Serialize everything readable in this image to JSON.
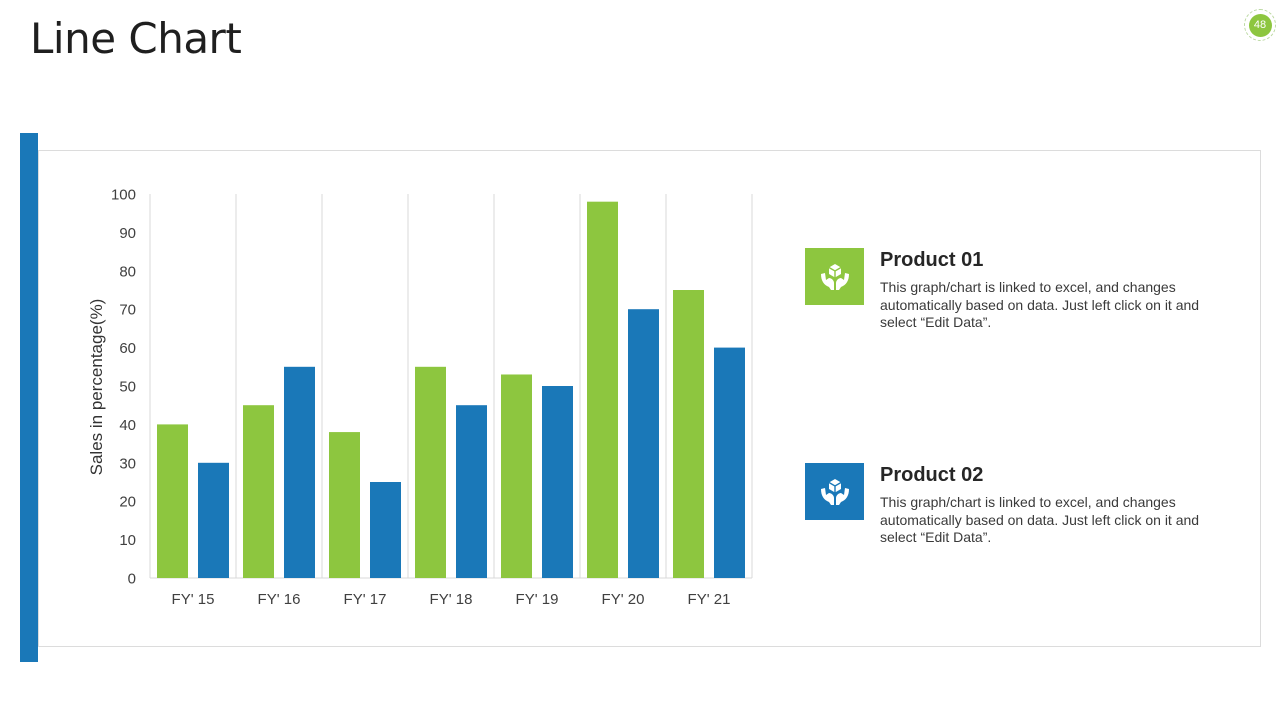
{
  "title": "Line Chart",
  "page_number": "48",
  "colors": {
    "accent": "#1a78b8",
    "green": "#8dc63f",
    "blue": "#1a78b8"
  },
  "legend": [
    {
      "title": "Product 01",
      "description": "This graph/chart is linked to excel, and changes automatically based on data. Just left click on it and select “Edit Data”.",
      "color": "#8dc63f",
      "icon": "hands-box-icon"
    },
    {
      "title": "Product 02",
      "description": "This graph/chart is linked to excel, and changes automatically based on data. Just left click on it and select “Edit Data”.",
      "color": "#1a78b8",
      "icon": "hands-box-icon"
    }
  ],
  "chart_data": {
    "type": "bar",
    "title": "",
    "xlabel": "",
    "ylabel": "Sales in percentage(%)",
    "categories": [
      "FY' 15",
      "FY' 16",
      "FY' 17",
      "FY' 18",
      "FY' 19",
      "FY' 20",
      "FY' 21"
    ],
    "series": [
      {
        "name": "Product 01",
        "color": "#8dc63f",
        "values": [
          40,
          45,
          38,
          55,
          53,
          98,
          75
        ]
      },
      {
        "name": "Product 02",
        "color": "#1a78b8",
        "values": [
          30,
          55,
          25,
          45,
          50,
          70,
          60
        ]
      }
    ],
    "ylim": [
      0,
      100
    ],
    "yticks": [
      0,
      10,
      20,
      30,
      40,
      50,
      60,
      70,
      80,
      90,
      100
    ],
    "grid": "vertical category separators",
    "legend_position": "right"
  }
}
